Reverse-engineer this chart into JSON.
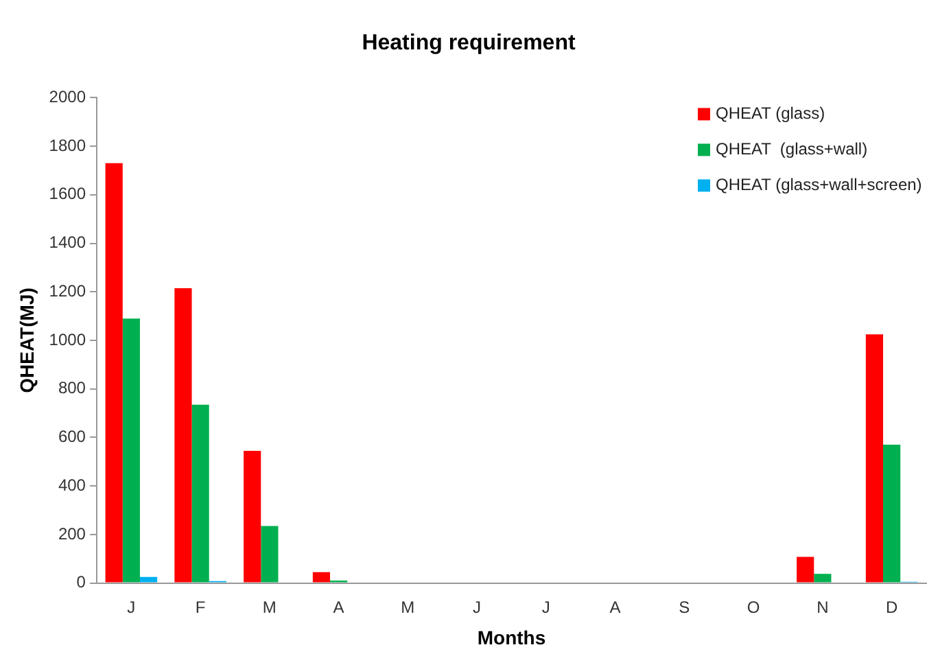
{
  "chart_data": {
    "type": "bar",
    "title": "Heating requirement",
    "xlabel": "Months",
    "ylabel": "QHEAT(MJ)",
    "categories": [
      "J",
      "F",
      "M",
      "A",
      "M",
      "J",
      "J",
      "A",
      "S",
      "O",
      "N",
      "D"
    ],
    "series": [
      {
        "name": "QHEAT (glass)",
        "color": "#ff0000",
        "values": [
          1730,
          1215,
          545,
          45,
          0,
          0,
          0,
          0,
          0,
          0,
          108,
          1025
        ]
      },
      {
        "name": "QHEAT  (glass+wall)",
        "color": "#00b050",
        "values": [
          1090,
          735,
          235,
          10,
          0,
          0,
          0,
          0,
          0,
          0,
          38,
          570
        ]
      },
      {
        "name": "QHEAT (glass+wall+screen)",
        "color": "#00b0f0",
        "values": [
          25,
          8,
          0,
          0,
          0,
          0,
          0,
          0,
          0,
          0,
          0,
          5
        ]
      }
    ],
    "ylim": [
      0,
      2000
    ],
    "yticks": [
      0,
      200,
      400,
      600,
      800,
      1000,
      1200,
      1400,
      1600,
      1800,
      2000
    ],
    "grid": false,
    "legend": "top right"
  }
}
